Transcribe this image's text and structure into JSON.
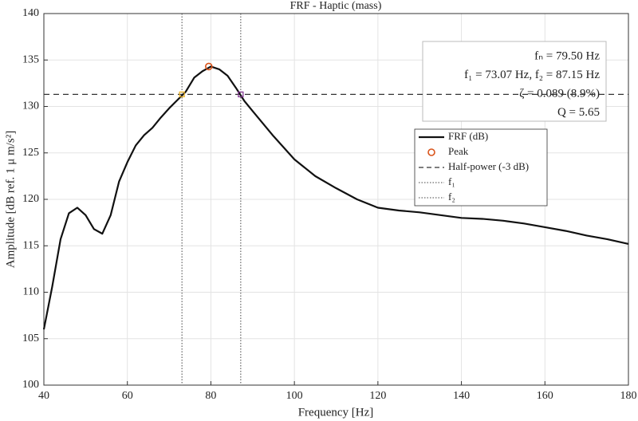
{
  "chart_data": {
    "type": "line",
    "title": "FRF - Haptic (mass)",
    "xlabel": "Frequency [Hz]",
    "ylabel": "Amplitude [dB ref. 1 μ m/s²]",
    "x": [
      40,
      42,
      44,
      46,
      48,
      50,
      52,
      54,
      56,
      58,
      60,
      62,
      64,
      66,
      68,
      70,
      72,
      74,
      76,
      78,
      80,
      82,
      84,
      86,
      88,
      90,
      95,
      100,
      105,
      110,
      115,
      120,
      125,
      130,
      135,
      140,
      145,
      150,
      155,
      160,
      165,
      170,
      175,
      180
    ],
    "series": [
      {
        "name": "FRF (dB)",
        "color": "#111111",
        "values": [
          106.0,
          110.6,
          115.7,
          118.5,
          119.1,
          118.3,
          116.8,
          116.3,
          118.3,
          121.9,
          124.0,
          125.8,
          126.9,
          127.7,
          128.8,
          129.8,
          130.7,
          131.6,
          133.1,
          133.8,
          134.3,
          134.0,
          133.3,
          132.0,
          130.6,
          129.5,
          126.8,
          124.3,
          122.5,
          121.2,
          120.0,
          119.1,
          118.8,
          118.6,
          118.3,
          118.0,
          117.9,
          117.7,
          117.4,
          117.0,
          116.6,
          116.1,
          115.7,
          115.2
        ]
      }
    ],
    "peak": {
      "name": "Peak",
      "x": 79.5,
      "y": 134.3,
      "color": "#d95319"
    },
    "half_power": {
      "name": "Half-power (-3 dB)",
      "value": 131.3,
      "color": "#333333"
    },
    "bands": [
      {
        "name": "f₁",
        "x": 73.07,
        "y": 131.3,
        "color": "#edb120"
      },
      {
        "name": "f₂",
        "x": 87.15,
        "y": 131.3,
        "color": "#7e2f8e"
      }
    ],
    "annotations": [
      "fₙ = 79.50 Hz",
      "f₁ = 73.07 Hz, f₂ = 87.15 Hz",
      "ζ = 0.089 (8.9%)",
      "Q = 5.65"
    ],
    "xlim": [
      40,
      180
    ],
    "xticks": [
      40,
      60,
      80,
      100,
      120,
      140,
      160,
      180
    ],
    "ylim": [
      100,
      140
    ],
    "yticks": [
      100,
      105,
      110,
      115,
      120,
      125,
      130,
      135,
      140
    ],
    "grid": true
  }
}
